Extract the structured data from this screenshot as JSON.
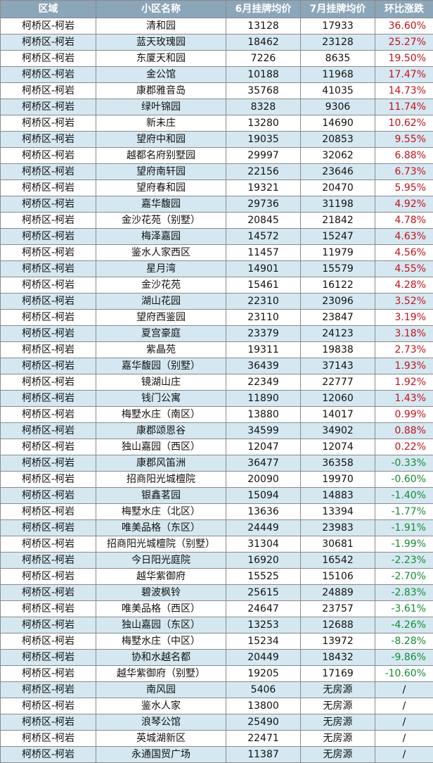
{
  "headers": [
    "区域",
    "小区名称",
    "6月挂牌均价",
    "7月挂牌均价",
    "环比涨跌"
  ],
  "colors": {
    "header_bg": "#8ca6b9",
    "row_alt": "#d5e8f1",
    "up": "#c0141c",
    "down": "#178a38"
  },
  "rows": [
    {
      "district": "柯桥区-柯岩",
      "name": "清和园",
      "june": "13128",
      "july": "17933",
      "change": "36.60%"
    },
    {
      "district": "柯桥区-柯岩",
      "name": "蓝天玫瑰园",
      "june": "18462",
      "july": "23128",
      "change": "25.27%"
    },
    {
      "district": "柯桥区-柯岩",
      "name": "东厦天和园",
      "june": "7226",
      "july": "8635",
      "change": "19.50%"
    },
    {
      "district": "柯桥区-柯岩",
      "name": "金公馆",
      "june": "10188",
      "july": "11968",
      "change": "17.47%"
    },
    {
      "district": "柯桥区-柯岩",
      "name": "康郡雅音岛",
      "june": "35768",
      "july": "41035",
      "change": "14.73%"
    },
    {
      "district": "柯桥区-柯岩",
      "name": "绿叶锦园",
      "june": "8328",
      "july": "9306",
      "change": "11.74%"
    },
    {
      "district": "柯桥区-柯岩",
      "name": "新未庄",
      "june": "13280",
      "july": "14690",
      "change": "10.62%"
    },
    {
      "district": "柯桥区-柯岩",
      "name": "望府中和园",
      "june": "19035",
      "july": "20853",
      "change": "9.55%"
    },
    {
      "district": "柯桥区-柯岩",
      "name": "越都名府别墅园",
      "june": "29997",
      "july": "32062",
      "change": "6.88%"
    },
    {
      "district": "柯桥区-柯岩",
      "name": "望府南轩园",
      "june": "22156",
      "july": "23646",
      "change": "6.73%"
    },
    {
      "district": "柯桥区-柯岩",
      "name": "望府春和园",
      "june": "19321",
      "july": "20470",
      "change": "5.95%"
    },
    {
      "district": "柯桥区-柯岩",
      "name": "嘉华馥园",
      "june": "29736",
      "july": "31198",
      "change": "4.92%"
    },
    {
      "district": "柯桥区-柯岩",
      "name": "金沙花苑（别墅）",
      "june": "20845",
      "july": "21842",
      "change": "4.78%"
    },
    {
      "district": "柯桥区-柯岩",
      "name": "梅泽嘉园",
      "june": "14572",
      "july": "15247",
      "change": "4.63%"
    },
    {
      "district": "柯桥区-柯岩",
      "name": "鉴水人家西区",
      "june": "11457",
      "july": "11979",
      "change": "4.56%"
    },
    {
      "district": "柯桥区-柯岩",
      "name": "星月湾",
      "june": "14901",
      "july": "15579",
      "change": "4.55%"
    },
    {
      "district": "柯桥区-柯岩",
      "name": "金沙花苑",
      "june": "15461",
      "july": "16122",
      "change": "4.28%"
    },
    {
      "district": "柯桥区-柯岩",
      "name": "湖山花园",
      "june": "22310",
      "july": "23096",
      "change": "3.52%"
    },
    {
      "district": "柯桥区-柯岩",
      "name": "望府西鉴园",
      "june": "23110",
      "july": "23847",
      "change": "3.19%"
    },
    {
      "district": "柯桥区-柯岩",
      "name": "夏宫豪庭",
      "june": "23379",
      "july": "24123",
      "change": "3.18%"
    },
    {
      "district": "柯桥区-柯岩",
      "name": "紫晶苑",
      "june": "19311",
      "july": "19838",
      "change": "2.73%"
    },
    {
      "district": "柯桥区-柯岩",
      "name": "嘉华馥园（别墅）",
      "june": "36439",
      "july": "37143",
      "change": "1.93%"
    },
    {
      "district": "柯桥区-柯岩",
      "name": "镜湖山庄",
      "june": "22349",
      "july": "22777",
      "change": "1.92%"
    },
    {
      "district": "柯桥区-柯岩",
      "name": "钱门公寓",
      "june": "11890",
      "july": "12060",
      "change": "1.43%"
    },
    {
      "district": "柯桥区-柯岩",
      "name": "梅墅水庄（南区）",
      "june": "13880",
      "july": "14017",
      "change": "0.99%"
    },
    {
      "district": "柯桥区-柯岩",
      "name": "康郡颂恩谷",
      "june": "34599",
      "july": "34902",
      "change": "0.88%"
    },
    {
      "district": "柯桥区-柯岩",
      "name": "独山嘉园（西区）",
      "june": "12047",
      "july": "12074",
      "change": "0.22%"
    },
    {
      "district": "柯桥区-柯岩",
      "name": "康郡风笛洲",
      "june": "36477",
      "july": "36358",
      "change": "-0.33%"
    },
    {
      "district": "柯桥区-柯岩",
      "name": "招商阳光城檀院",
      "june": "20090",
      "july": "19970",
      "change": "-0.60%"
    },
    {
      "district": "柯桥区-柯岩",
      "name": "银鑫茗园",
      "june": "15094",
      "july": "14883",
      "change": "-1.40%"
    },
    {
      "district": "柯桥区-柯岩",
      "name": "梅墅水庄（北区）",
      "june": "13636",
      "july": "13394",
      "change": "-1.77%"
    },
    {
      "district": "柯桥区-柯岩",
      "name": "唯美品格（东区）",
      "june": "24449",
      "july": "23983",
      "change": "-1.91%"
    },
    {
      "district": "柯桥区-柯岩",
      "name": "招商阳光城檀院（别墅）",
      "june": "31304",
      "july": "30681",
      "change": "-1.99%"
    },
    {
      "district": "柯桥区-柯岩",
      "name": "今日阳光庭院",
      "june": "16920",
      "july": "16542",
      "change": "-2.23%"
    },
    {
      "district": "柯桥区-柯岩",
      "name": "越华紫御府",
      "june": "15525",
      "july": "15106",
      "change": "-2.70%"
    },
    {
      "district": "柯桥区-柯岩",
      "name": "碧波枫铃",
      "june": "25615",
      "july": "24889",
      "change": "-2.83%"
    },
    {
      "district": "柯桥区-柯岩",
      "name": "唯美品格（西区）",
      "june": "24647",
      "july": "23757",
      "change": "-3.61%"
    },
    {
      "district": "柯桥区-柯岩",
      "name": "独山嘉园（东区）",
      "june": "13253",
      "july": "12688",
      "change": "-4.26%"
    },
    {
      "district": "柯桥区-柯岩",
      "name": "梅墅水庄（中区）",
      "june": "15234",
      "july": "13972",
      "change": "-8.28%"
    },
    {
      "district": "柯桥区-柯岩",
      "name": "协和水越名都",
      "june": "20449",
      "july": "18432",
      "change": "-9.86%"
    },
    {
      "district": "柯桥区-柯岩",
      "name": "越华紫御府（别墅）",
      "june": "19205",
      "july": "17169",
      "change": "-10.60%"
    },
    {
      "district": "柯桥区-柯岩",
      "name": "南风园",
      "june": "5406",
      "july": "无房源",
      "change": "/"
    },
    {
      "district": "柯桥区-柯岩",
      "name": "鉴水人家",
      "june": "13800",
      "july": "无房源",
      "change": "/"
    },
    {
      "district": "柯桥区-柯岩",
      "name": "浪琴公馆",
      "june": "25490",
      "july": "无房源",
      "change": "/"
    },
    {
      "district": "柯桥区-柯岩",
      "name": "英城湖新区",
      "june": "22471",
      "july": "无房源",
      "change": "/"
    },
    {
      "district": "柯桥区-柯岩",
      "name": "永通国贸广场",
      "june": "11387",
      "july": "无房源",
      "change": "/"
    }
  ]
}
